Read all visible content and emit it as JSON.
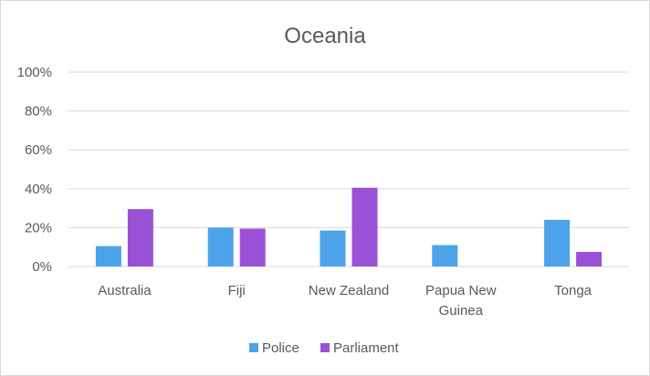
{
  "chart_data": {
    "type": "bar",
    "title": "Oceania",
    "xlabel": "",
    "ylabel": "",
    "ylim": [
      0,
      100
    ],
    "yticks": [
      "0%",
      "20%",
      "40%",
      "60%",
      "80%",
      "100%"
    ],
    "categories": [
      [
        "Australia"
      ],
      [
        "Fiji"
      ],
      [
        "New Zealand"
      ],
      [
        "Papua New",
        "Guinea"
      ],
      [
        "Tonga"
      ]
    ],
    "series": [
      {
        "name": "Police",
        "color": "#4da3ea",
        "values": [
          10.5,
          20,
          18.5,
          11,
          24
        ]
      },
      {
        "name": "Parliament",
        "color": "#9b50d8",
        "values": [
          29.5,
          19.5,
          40.5,
          0,
          7.5
        ]
      }
    ],
    "grid": true,
    "legend": "bottom"
  }
}
